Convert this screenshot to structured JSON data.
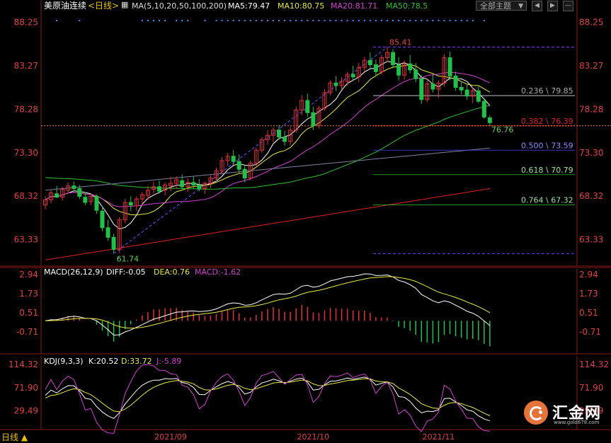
{
  "header": {
    "instrument": "美原油连续",
    "period": "<日线>",
    "ma_spec": "MA(5,10,20,50,100,200)",
    "ma5": "MA5:79.47",
    "ma10": "MA10:80.75",
    "ma20": "MA20:81.71",
    "ma50": "MA50:78.5",
    "theme_label": "全部主题",
    "theme_arrow": "▼",
    "btn_a": "◀",
    "btn_b": "▶",
    "btn_c": "—"
  },
  "bottom": {
    "period_label": "日线 ▲"
  },
  "watermark": {
    "name": "汇金网",
    "url": "www.gold678.com"
  },
  "colors": {
    "bg": "#000000",
    "up": "#e0303a",
    "down": "#22c04a",
    "ma5": "#ffffff",
    "ma10": "#e8e840",
    "ma20": "#d040d0",
    "ma50": "#30c030",
    "ma100": "#8080a0",
    "ma200": "#e02020",
    "axis_text": "#e04040",
    "fib": "#8888ff"
  },
  "chart_data": [
    {
      "type": "candlestick",
      "title": "美原油连续<日线>",
      "ylim": [
        60.3,
        89.2
      ],
      "yticks": [
        "88.25",
        "83.27",
        "78.28",
        "73.30",
        "68.32",
        "63.33"
      ],
      "xticks": [
        "2021/09",
        "2021/10",
        "2021/11"
      ],
      "annotations": {
        "high": "85.41",
        "low": "61.74",
        "last": "76.76"
      },
      "fibonacci": [
        {
          "label": "0.236 \\ 79.85",
          "value": 79.85
        },
        {
          "label": "0.382 \\ 76.39",
          "value": 76.39
        },
        {
          "label": "0.500 \\ 73.59",
          "value": 73.59
        },
        {
          "label": "0.618 \\ 70.79",
          "value": 70.79
        },
        {
          "label": "0.764 \\ 67.32",
          "value": 67.32
        }
      ],
      "fib_top": 85.41,
      "fib_bottom": 61.74,
      "current_price_line": 76.39,
      "candles": [
        [
          67.3,
          68.3,
          66.8,
          67.9
        ],
        [
          67.9,
          69.0,
          67.5,
          68.7
        ],
        [
          68.6,
          69.5,
          68.1,
          68.2
        ],
        [
          68.2,
          69.4,
          67.8,
          69.1
        ],
        [
          69.0,
          69.9,
          68.6,
          69.5
        ],
        [
          69.5,
          70.0,
          68.9,
          69.2
        ],
        [
          69.2,
          69.6,
          68.0,
          68.3
        ],
        [
          68.2,
          68.8,
          67.3,
          67.6
        ],
        [
          67.7,
          68.6,
          67.3,
          68.3
        ],
        [
          68.3,
          68.5,
          66.3,
          66.7
        ],
        [
          66.6,
          67.2,
          64.3,
          64.7
        ],
        [
          64.7,
          65.6,
          63.2,
          63.6
        ],
        [
          63.6,
          64.0,
          61.74,
          62.2
        ],
        [
          62.2,
          65.9,
          61.8,
          65.6
        ],
        [
          65.6,
          68.0,
          65.2,
          67.6
        ],
        [
          67.6,
          68.3,
          66.6,
          67.3
        ],
        [
          67.2,
          68.3,
          66.6,
          68.0
        ],
        [
          68.0,
          68.8,
          67.3,
          68.5
        ],
        [
          68.4,
          69.5,
          67.9,
          69.0
        ],
        [
          69.1,
          70.0,
          68.6,
          69.4
        ],
        [
          69.4,
          70.1,
          68.6,
          68.9
        ],
        [
          69.0,
          69.9,
          68.4,
          69.6
        ],
        [
          69.5,
          70.5,
          68.9,
          69.8
        ],
        [
          69.8,
          70.6,
          69.2,
          70.2
        ],
        [
          70.1,
          70.8,
          69.1,
          69.4
        ],
        [
          69.4,
          70.4,
          68.8,
          69.9
        ],
        [
          69.9,
          70.6,
          69.2,
          69.6
        ],
        [
          69.6,
          70.3,
          68.9,
          69.2
        ],
        [
          69.2,
          70.0,
          68.6,
          69.8
        ],
        [
          69.8,
          70.7,
          69.3,
          70.4
        ],
        [
          70.4,
          71.6,
          70.0,
          71.2
        ],
        [
          71.2,
          72.8,
          70.8,
          72.4
        ],
        [
          72.4,
          73.3,
          71.8,
          72.9
        ],
        [
          72.9,
          73.6,
          71.9,
          72.3
        ],
        [
          72.3,
          73.1,
          71.0,
          71.4
        ],
        [
          71.4,
          71.9,
          69.9,
          70.4
        ],
        [
          70.4,
          72.4,
          70.1,
          72.1
        ],
        [
          72.1,
          73.9,
          71.8,
          73.6
        ],
        [
          73.6,
          75.1,
          73.3,
          74.8
        ],
        [
          74.8,
          75.9,
          74.2,
          75.3
        ],
        [
          75.3,
          76.2,
          74.5,
          75.9
        ],
        [
          75.9,
          76.5,
          74.8,
          75.1
        ],
        [
          75.1,
          75.8,
          74.1,
          74.6
        ],
        [
          74.6,
          76.3,
          74.2,
          75.9
        ],
        [
          75.9,
          78.6,
          75.6,
          78.2
        ],
        [
          78.2,
          79.9,
          77.6,
          79.3
        ],
        [
          79.3,
          80.1,
          77.4,
          77.9
        ],
        [
          77.9,
          78.6,
          75.9,
          76.4
        ],
        [
          76.4,
          78.7,
          76.1,
          78.4
        ],
        [
          78.4,
          80.6,
          78.1,
          80.2
        ],
        [
          80.2,
          81.6,
          79.9,
          81.3
        ],
        [
          81.3,
          82.1,
          80.4,
          81.0
        ],
        [
          81.0,
          82.0,
          80.6,
          81.5
        ],
        [
          81.5,
          82.6,
          81.0,
          82.3
        ],
        [
          82.3,
          83.3,
          81.6,
          82.0
        ],
        [
          82.0,
          83.6,
          81.4,
          83.1
        ],
        [
          83.1,
          84.3,
          82.6,
          83.9
        ],
        [
          83.9,
          84.8,
          83.0,
          83.4
        ],
        [
          83.4,
          84.0,
          82.1,
          82.6
        ],
        [
          82.6,
          84.5,
          82.3,
          84.2
        ],
        [
          84.2,
          85.41,
          83.7,
          84.8
        ],
        [
          84.8,
          85.2,
          83.0,
          83.4
        ],
        [
          83.4,
          84.3,
          81.6,
          82.2
        ],
        [
          82.2,
          83.9,
          81.7,
          83.5
        ],
        [
          83.5,
          84.5,
          82.4,
          82.8
        ],
        [
          82.8,
          83.6,
          81.4,
          81.8
        ],
        [
          81.8,
          82.2,
          78.9,
          79.4
        ],
        [
          79.4,
          81.6,
          79.1,
          81.2
        ],
        [
          81.2,
          82.3,
          80.2,
          80.6
        ],
        [
          80.6,
          81.6,
          79.6,
          81.3
        ],
        [
          81.3,
          84.6,
          80.9,
          84.2
        ],
        [
          84.2,
          84.9,
          81.6,
          82.1
        ],
        [
          82.1,
          82.6,
          80.4,
          80.8
        ],
        [
          80.8,
          81.4,
          80.0,
          80.5
        ],
        [
          80.5,
          81.2,
          79.4,
          79.8
        ],
        [
          79.8,
          80.8,
          79.0,
          80.4
        ],
        [
          80.4,
          80.9,
          79.0,
          79.2
        ],
        [
          79.2,
          79.6,
          77.2,
          77.4
        ],
        [
          77.3,
          77.6,
          76.4,
          76.76
        ]
      ]
    },
    {
      "type": "line",
      "title": "MACD(26,12,9)",
      "indicator_values": {
        "DIFF": "DIFF:-0.05",
        "DEA": "DEA:0.76",
        "MACD": "MACD:-1.62"
      },
      "yticks": [
        "2.94",
        "1.73",
        "0.51",
        "-0.71"
      ],
      "ylim": [
        -2.1,
        3.3
      ]
    },
    {
      "type": "line",
      "title": "KDJ(9,3,3)",
      "indicator_values": {
        "K": "K:20.52",
        "D": "D:33.72",
        "J": "J:-5.89"
      },
      "yticks": [
        "114.32",
        "71.90",
        "29.49"
      ],
      "ylim": [
        -5,
        130
      ]
    }
  ]
}
